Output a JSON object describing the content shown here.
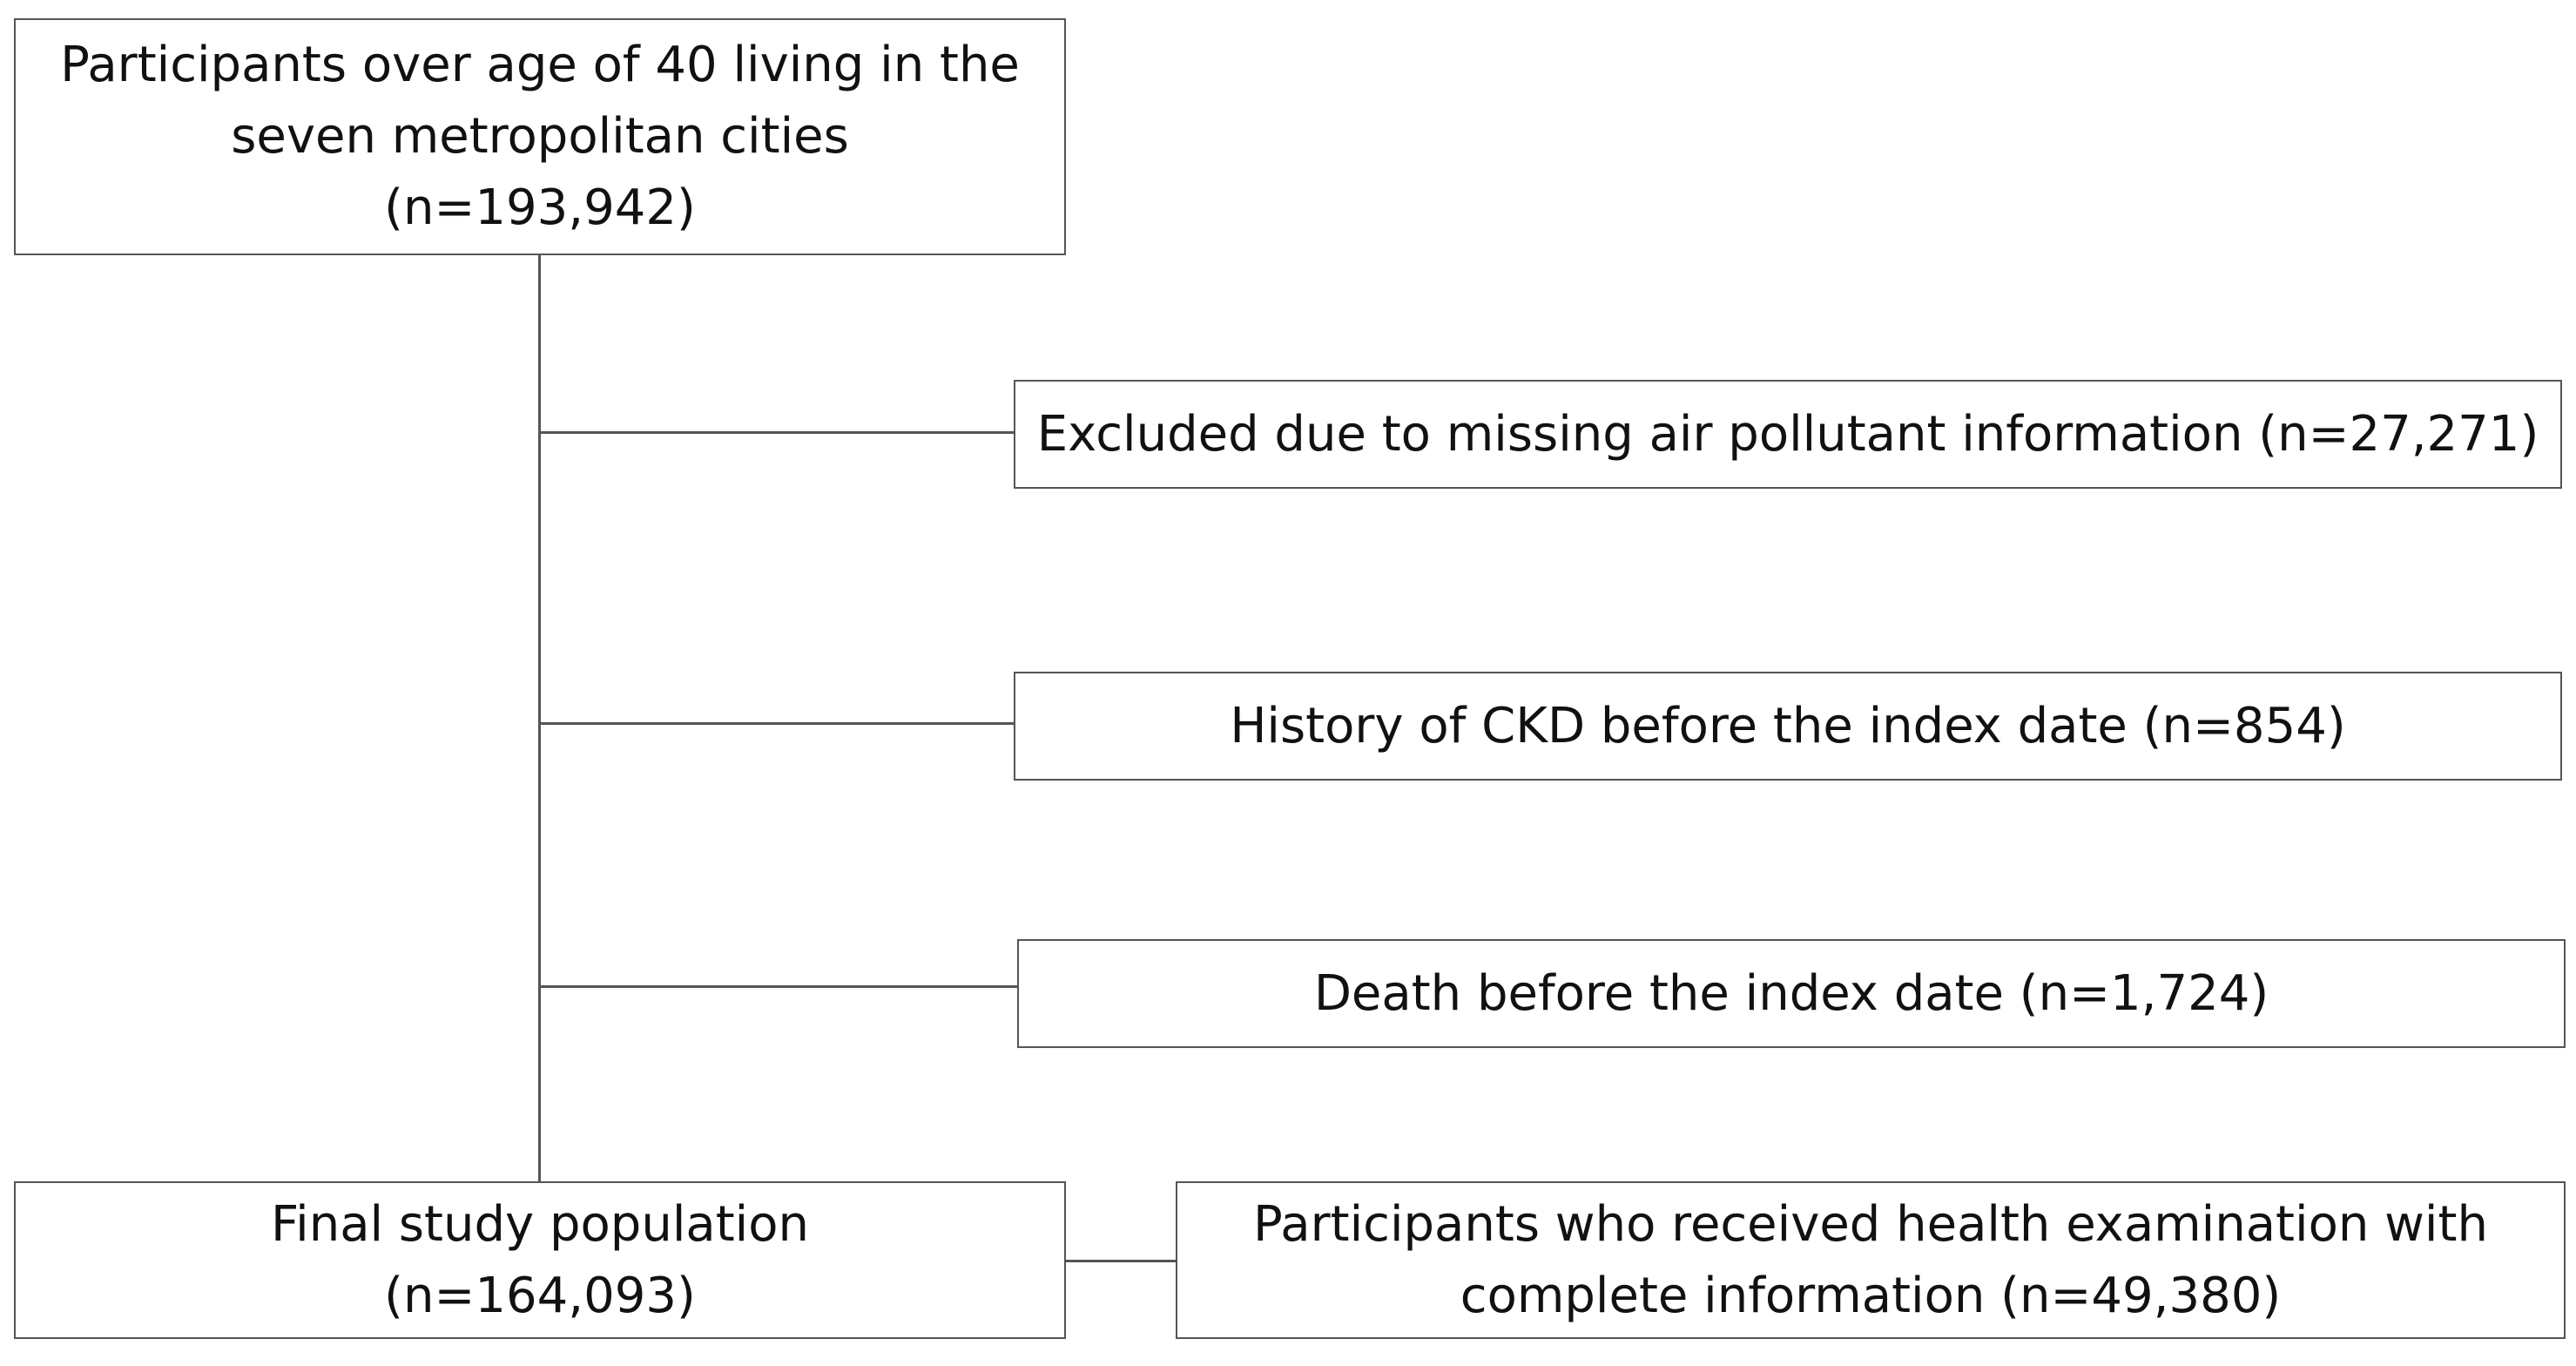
{
  "flowchart": {
    "start": {
      "line1": "Participants over age of 40 living in the",
      "line2": "seven metropolitan cities",
      "line3": "(n=193,942)"
    },
    "exclusions": [
      {
        "text": "Excluded due to missing air pollutant information (n=27,271)"
      },
      {
        "text": "History of CKD before the index date (n=854)"
      },
      {
        "text": "Death before the index date (n=1,724)"
      }
    ],
    "final": {
      "line1": "Final study population",
      "line2": "(n=164,093)"
    },
    "subset": {
      "line1": "Participants who received health examination with",
      "line2": "complete information (n=49,380)"
    }
  }
}
